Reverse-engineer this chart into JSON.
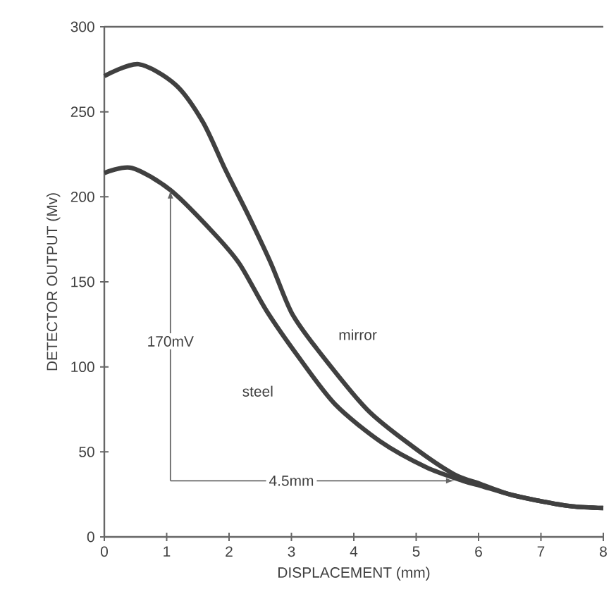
{
  "chart_data": {
    "type": "line",
    "xlabel": "DISPLACEMENT (mm)",
    "ylabel": "DETECTOR OUTPUT (Mv)",
    "xlim": [
      0,
      8
    ],
    "ylim": [
      0,
      300
    ],
    "xticks": [
      0,
      1,
      2,
      3,
      4,
      5,
      6,
      7,
      8
    ],
    "yticks": [
      0,
      50,
      100,
      150,
      200,
      250,
      300
    ],
    "grid": false,
    "legend": false,
    "marker": "none",
    "line_style": "solid",
    "series": [
      {
        "name": "mirror",
        "color": "#404040",
        "x": [
          0,
          0.55,
          1.14,
          1.58,
          1.94,
          2.31,
          2.67,
          3.0,
          3.4,
          4.21,
          4.95,
          5.6,
          6.04,
          6.5,
          7.0,
          7.5,
          8.0
        ],
        "values": [
          271,
          278,
          266,
          244,
          216,
          189,
          161,
          132,
          111,
          75,
          53,
          37,
          31,
          25,
          21,
          18,
          17
        ]
      },
      {
        "name": "steel",
        "color": "#404040",
        "x": [
          0,
          0.44,
          1.06,
          1.72,
          2.16,
          2.6,
          3.11,
          3.7,
          4.43,
          5.16,
          5.75,
          6.04,
          6.5,
          7.0,
          7.5,
          8.0
        ],
        "values": [
          214,
          217,
          204,
          180,
          161,
          133,
          106,
          78,
          56,
          41,
          33,
          30,
          25,
          21,
          18,
          17
        ]
      }
    ],
    "annotations": [
      {
        "text": "170mV",
        "x": 1.06,
        "y": 115
      },
      {
        "text": "4.5mm",
        "x": 3.0,
        "y": 33
      }
    ]
  }
}
